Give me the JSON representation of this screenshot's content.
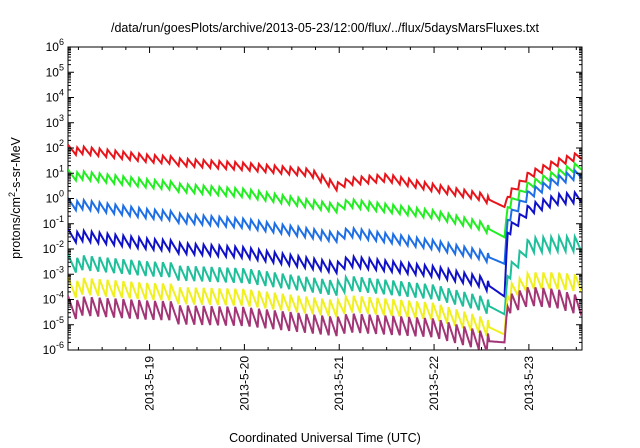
{
  "chart_data": {
    "type": "line",
    "title": "/data/run/goesPlots/archive/2013-05-23/12:00/flux/../flux/5daysMarsFluxes.txt",
    "xlabel": "Coordinated Universal Time (UTC)",
    "ylabel": {
      "prefix": "protons/cm",
      "sup": "2",
      "suffix": "-s-sr-MeV"
    },
    "x_unit": "days since 2013-05-18 00:00 UTC",
    "xlim": [
      0.14,
      5.56
    ],
    "x_ticks": [
      {
        "x": 1,
        "label": "2013-5-19"
      },
      {
        "x": 2,
        "label": "2013-5-20"
      },
      {
        "x": 3,
        "label": "2013-5-21"
      },
      {
        "x": 4,
        "label": "2013-5-22"
      },
      {
        "x": 5,
        "label": "2013-5-23"
      }
    ],
    "y_scale": "log",
    "ylim_log10": [
      -6,
      6
    ],
    "y_ticks": [
      {
        "exp": -6,
        "base": "10",
        "sup": "-6"
      },
      {
        "exp": -5,
        "base": "10",
        "sup": "-5"
      },
      {
        "exp": -4,
        "base": "10",
        "sup": "-4"
      },
      {
        "exp": -3,
        "base": "10",
        "sup": "-3"
      },
      {
        "exp": -2,
        "base": "10",
        "sup": "-2"
      },
      {
        "exp": -1,
        "base": "10",
        "sup": "-1"
      },
      {
        "exp": 0,
        "base": "10",
        "sup": "0"
      },
      {
        "exp": 1,
        "base": "10",
        "sup": "1"
      },
      {
        "exp": 2,
        "base": "10",
        "sup": "2"
      },
      {
        "exp": 3,
        "base": "10",
        "sup": "3"
      },
      {
        "exp": 4,
        "base": "10",
        "sup": "4"
      },
      {
        "exp": 5,
        "base": "10",
        "sup": "5"
      },
      {
        "exp": 6,
        "base": "10",
        "sup": "6"
      }
    ],
    "grid": false,
    "legend": "none",
    "sawtooth_period_days": 0.0833,
    "series": [
      {
        "color": "#e8141b",
        "amplitude_log10": 0.18,
        "envelope": [
          [
            0.14,
            1.95
          ],
          [
            1.0,
            1.55
          ],
          [
            2.0,
            1.3
          ],
          [
            2.7,
            1.05
          ],
          [
            2.97,
            0.5
          ],
          [
            3.1,
            0.7
          ],
          [
            3.5,
            0.85
          ],
          [
            4.0,
            0.45
          ],
          [
            4.5,
            0.1
          ],
          [
            4.75,
            -0.35
          ],
          [
            4.77,
            0.1
          ],
          [
            5.0,
            0.95
          ],
          [
            5.3,
            1.45
          ],
          [
            5.56,
            1.75
          ]
        ]
      },
      {
        "color": "#22ee22",
        "amplitude_log10": 0.2,
        "envelope": [
          [
            0.14,
            0.95
          ],
          [
            1.0,
            0.55
          ],
          [
            2.0,
            0.25
          ],
          [
            2.97,
            -0.35
          ],
          [
            3.1,
            -0.15
          ],
          [
            4.0,
            -0.6
          ],
          [
            4.5,
            -1.05
          ],
          [
            4.75,
            -1.55
          ],
          [
            4.77,
            -0.3
          ],
          [
            5.0,
            0.55
          ],
          [
            5.3,
            1.0
          ],
          [
            5.56,
            1.35
          ]
        ]
      },
      {
        "color": "#1e6fe6",
        "amplitude_log10": 0.22,
        "envelope": [
          [
            0.14,
            -0.2
          ],
          [
            1.0,
            -0.65
          ],
          [
            2.0,
            -0.95
          ],
          [
            2.97,
            -1.5
          ],
          [
            3.1,
            -1.3
          ],
          [
            4.0,
            -1.8
          ],
          [
            4.5,
            -2.2
          ],
          [
            4.75,
            -2.6
          ],
          [
            4.77,
            -0.8
          ],
          [
            5.0,
            0.2
          ],
          [
            5.3,
            0.75
          ],
          [
            5.56,
            1.05
          ]
        ]
      },
      {
        "color": "#1010c8",
        "amplitude_log10": 0.25,
        "envelope": [
          [
            0.14,
            -1.45
          ],
          [
            1.0,
            -1.85
          ],
          [
            2.0,
            -2.1
          ],
          [
            2.97,
            -2.7
          ],
          [
            3.1,
            -2.45
          ],
          [
            4.0,
            -2.85
          ],
          [
            4.5,
            -3.25
          ],
          [
            4.75,
            -3.9
          ],
          [
            4.77,
            -1.3
          ],
          [
            5.0,
            -0.4
          ],
          [
            5.3,
            0.0
          ],
          [
            5.56,
            0.1
          ]
        ]
      },
      {
        "color": "#1fbf9a",
        "amplitude_log10": 0.35,
        "envelope": [
          [
            0.14,
            -2.55
          ],
          [
            1.0,
            -2.85
          ],
          [
            2.0,
            -3.0
          ],
          [
            2.97,
            -3.5
          ],
          [
            3.1,
            -3.3
          ],
          [
            4.0,
            -3.65
          ],
          [
            4.5,
            -4.1
          ],
          [
            4.75,
            -4.6
          ],
          [
            4.77,
            -3.0
          ],
          [
            5.0,
            -1.8
          ],
          [
            5.3,
            -1.75
          ],
          [
            5.56,
            -1.75
          ]
        ]
      },
      {
        "color": "#f0f020",
        "amplitude_log10": 0.4,
        "envelope": [
          [
            0.14,
            -3.5
          ],
          [
            1.0,
            -3.75
          ],
          [
            2.0,
            -3.85
          ],
          [
            2.97,
            -4.3
          ],
          [
            3.1,
            -4.1
          ],
          [
            4.0,
            -4.4
          ],
          [
            4.5,
            -4.95
          ],
          [
            4.75,
            -5.4
          ],
          [
            4.77,
            -3.75
          ],
          [
            5.0,
            -3.2
          ],
          [
            5.3,
            -3.2
          ],
          [
            5.56,
            -3.3
          ]
        ]
      },
      {
        "color": "#a33576",
        "amplitude_log10": 0.45,
        "envelope": [
          [
            0.14,
            -4.3
          ],
          [
            1.0,
            -4.5
          ],
          [
            2.0,
            -4.6
          ],
          [
            2.97,
            -5.0
          ],
          [
            3.1,
            -4.85
          ],
          [
            4.0,
            -5.05
          ],
          [
            4.5,
            -5.55
          ],
          [
            4.57,
            -5.65
          ],
          [
            4.75,
            -5.7
          ],
          [
            4.77,
            -4.15
          ],
          [
            5.0,
            -3.8
          ],
          [
            5.3,
            -3.9
          ],
          [
            5.56,
            -4.2
          ]
        ]
      }
    ]
  }
}
